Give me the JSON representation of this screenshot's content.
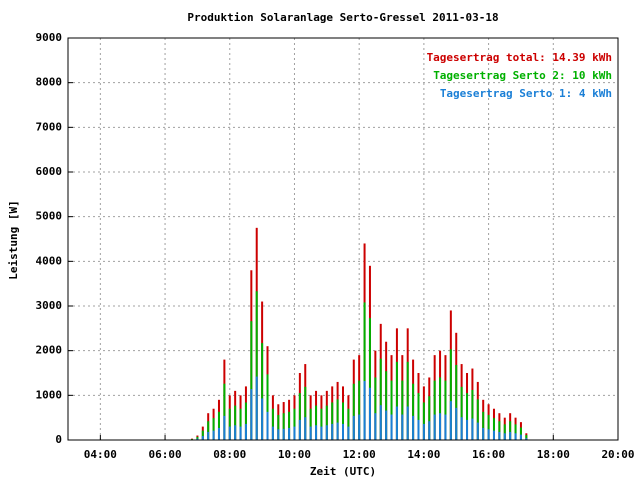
{
  "chart_data": {
    "type": "bar",
    "title": "Produktion Solaranlage Serto-Gressel 2011-03-18",
    "xlabel": "Zeit (UTC)",
    "ylabel": "Leistung [W]",
    "x": [
      "06:50",
      "07:00",
      "07:10",
      "07:20",
      "07:30",
      "07:40",
      "07:50",
      "08:00",
      "08:10",
      "08:20",
      "08:30",
      "08:40",
      "08:50",
      "09:00",
      "09:10",
      "09:20",
      "09:30",
      "09:40",
      "09:50",
      "10:00",
      "10:10",
      "10:20",
      "10:30",
      "10:40",
      "10:50",
      "11:00",
      "11:10",
      "11:20",
      "11:30",
      "11:40",
      "11:50",
      "12:00",
      "12:10",
      "12:20",
      "12:30",
      "12:40",
      "12:50",
      "13:00",
      "13:10",
      "13:20",
      "13:30",
      "13:40",
      "13:50",
      "14:00",
      "14:10",
      "14:20",
      "14:30",
      "14:40",
      "14:50",
      "15:00",
      "15:10",
      "15:20",
      "15:30",
      "15:40",
      "15:50",
      "16:00",
      "16:10",
      "16:20",
      "16:30",
      "16:40",
      "16:50",
      "17:00",
      "17:10"
    ],
    "series": [
      {
        "name": "Tagesertrag total: 14.39 kWh",
        "color": "#cc0000",
        "values": [
          30,
          100,
          300,
          600,
          700,
          900,
          1800,
          1000,
          1100,
          1000,
          1200,
          3800,
          4750,
          3100,
          2100,
          1000,
          800,
          850,
          900,
          1000,
          1500,
          1700,
          1000,
          1100,
          1000,
          1100,
          1200,
          1300,
          1200,
          1000,
          1800,
          1900,
          4400,
          3900,
          2000,
          2600,
          2200,
          1900,
          2500,
          1900,
          2500,
          1800,
          1500,
          1200,
          1400,
          1900,
          2000,
          1900,
          2900,
          2400,
          1700,
          1500,
          1600,
          1300,
          900,
          800,
          700,
          600,
          500,
          600,
          500,
          400,
          150
        ]
      },
      {
        "name": "Tagesertrag Serto 2: 10 kWh",
        "color": "#00b000",
        "values": [
          20,
          70,
          210,
          420,
          490,
          630,
          1260,
          700,
          770,
          700,
          840,
          2660,
          3330,
          2170,
          1470,
          700,
          560,
          600,
          630,
          700,
          1050,
          1190,
          700,
          770,
          700,
          770,
          840,
          910,
          840,
          700,
          1260,
          1330,
          3080,
          2730,
          1400,
          1820,
          1540,
          1330,
          1750,
          1330,
          1750,
          1260,
          1050,
          840,
          980,
          1330,
          1400,
          1330,
          2030,
          1680,
          1190,
          1050,
          1120,
          910,
          630,
          560,
          490,
          420,
          350,
          420,
          350,
          280,
          110
        ]
      },
      {
        "name": "Tagesertrag Serto 1: 4 kWh",
        "color": "#1a7fd6",
        "values": [
          10,
          30,
          90,
          180,
          210,
          270,
          540,
          300,
          330,
          300,
          360,
          1140,
          1420,
          930,
          630,
          300,
          240,
          250,
          270,
          300,
          450,
          510,
          300,
          330,
          300,
          330,
          360,
          390,
          360,
          300,
          540,
          570,
          1320,
          1170,
          600,
          780,
          660,
          570,
          750,
          570,
          750,
          540,
          450,
          360,
          420,
          570,
          600,
          570,
          870,
          720,
          510,
          450,
          480,
          390,
          270,
          240,
          210,
          180,
          150,
          180,
          150,
          120,
          40
        ]
      }
    ],
    "xlim": [
      "03:00",
      "20:00"
    ],
    "xticks": [
      "04:00",
      "06:00",
      "08:00",
      "10:00",
      "12:00",
      "14:00",
      "16:00",
      "18:00",
      "20:00"
    ],
    "ylim": [
      0,
      9000
    ],
    "yticks": [
      0,
      1000,
      2000,
      3000,
      4000,
      5000,
      6000,
      7000,
      8000,
      9000
    ],
    "grid": true,
    "legend": "upper right"
  }
}
